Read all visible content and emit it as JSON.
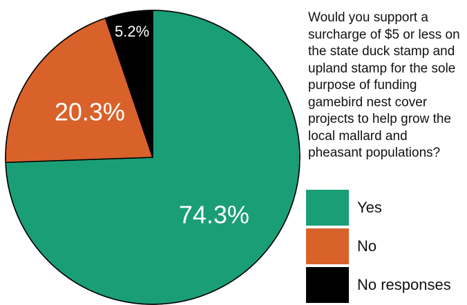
{
  "chart_data": {
    "type": "pie",
    "title": "Would you support a surcharge of $5 or less on the state duck stamp and upland stamp for the sole purpose of funding gamebird nest cover projects to help grow the local mallard and pheasant populations?",
    "slices": [
      {
        "label": "Yes",
        "value": 74.3,
        "data_label": "74.3%",
        "color": "#1a9e76"
      },
      {
        "label": "No",
        "value": 20.3,
        "data_label": "20.3%",
        "color": "#d9622b"
      },
      {
        "label": "No responses",
        "value": 5.2,
        "data_label": "5.2%",
        "color": "#000000"
      }
    ],
    "start_angle_deg": 0,
    "direction": "clockwise",
    "legend_placement": "right"
  }
}
